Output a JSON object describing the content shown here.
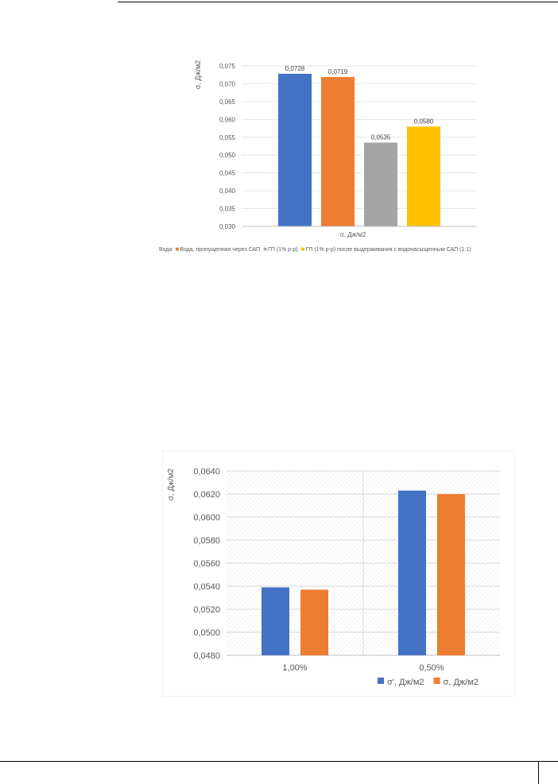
{
  "chart_data": [
    {
      "type": "bar",
      "title": "",
      "ylabel": "σ, Дж/м2",
      "xlabel": "σ, Дж/м2",
      "ylim": [
        0.03,
        0.075
      ],
      "yticks": [
        "0,030",
        "0,035",
        "0,040",
        "0,045",
        "0,050",
        "0,055",
        "0,060",
        "0,065",
        "0,070",
        "0,075"
      ],
      "grid": true,
      "legend_position": "bottom",
      "series": [
        {
          "name": "Вода",
          "value": 0.0728,
          "label": "0,0728",
          "color": "#4472C4"
        },
        {
          "name": "Вода, пропущенная через САП",
          "value": 0.0719,
          "label": "0,0719",
          "color": "#ED7D31"
        },
        {
          "name": "ГП (1% р-р)",
          "value": 0.0535,
          "label": "0,0535",
          "color": "#A5A5A5"
        },
        {
          "name": "ГП (1% р-р) после выдерживания с водонасыщенным САП (1:1)",
          "value": 0.058,
          "label": "0,0580",
          "color": "#FFC000"
        }
      ]
    },
    {
      "type": "bar",
      "title": "",
      "ylabel": "σ, Дж/м2",
      "xlabel": "",
      "ylim": [
        0.048,
        0.064
      ],
      "yticks": [
        "0,0480",
        "0,0500",
        "0,0520",
        "0,0540",
        "0,0560",
        "0,0580",
        "0,0600",
        "0,0620",
        "0,0640"
      ],
      "grid": true,
      "legend_position": "bottom-right",
      "categories": [
        "1,00%",
        "0,50%"
      ],
      "series": [
        {
          "name": "σ', Дж/м2",
          "values": [
            0.0539,
            0.0623
          ],
          "color": "#4472C4"
        },
        {
          "name": "σ, Дж/м2",
          "values": [
            0.0537,
            0.062
          ],
          "color": "#ED7D31"
        }
      ]
    }
  ]
}
